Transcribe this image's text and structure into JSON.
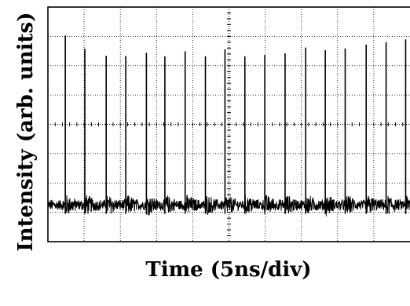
{
  "chart_data": {
    "type": "line",
    "title": "",
    "xlabel": "Time (5ns/div)",
    "ylabel": "Intensity (arb. units)",
    "x_unit": "div",
    "xlim": [
      0,
      10
    ],
    "ylim": [
      0,
      8
    ],
    "grid": true,
    "grid_style": "dotted",
    "x_divisions": 10,
    "y_divisions": 8,
    "baseline_level": 1.25,
    "noise_amplitude": 0.35,
    "series": [
      {
        "pulses": [
          {
            "t": 0.48,
            "peak": 7.03
          },
          {
            "t": 1.02,
            "peak": 6.58
          },
          {
            "t": 1.61,
            "peak": 6.34
          },
          {
            "t": 2.15,
            "peak": 6.33
          },
          {
            "t": 2.72,
            "peak": 6.44
          },
          {
            "t": 3.23,
            "peak": 6.32
          },
          {
            "t": 3.79,
            "peak": 6.49
          },
          {
            "t": 4.35,
            "peak": 6.32
          },
          {
            "t": 4.89,
            "peak": 6.56
          },
          {
            "t": 5.44,
            "peak": 6.32
          },
          {
            "t": 5.99,
            "peak": 6.36
          },
          {
            "t": 6.55,
            "peak": 6.42
          },
          {
            "t": 7.12,
            "peak": 6.62
          },
          {
            "t": 7.66,
            "peak": 6.53
          },
          {
            "t": 8.21,
            "peak": 6.59
          },
          {
            "t": 8.79,
            "peak": 6.72
          },
          {
            "t": 9.34,
            "peak": 6.8
          },
          {
            "t": 9.88,
            "peak": 6.9
          }
        ]
      }
    ]
  },
  "colors": {
    "trace": "#000000",
    "grid": "#000000",
    "frame": "#000000",
    "background": "#ffffff"
  }
}
